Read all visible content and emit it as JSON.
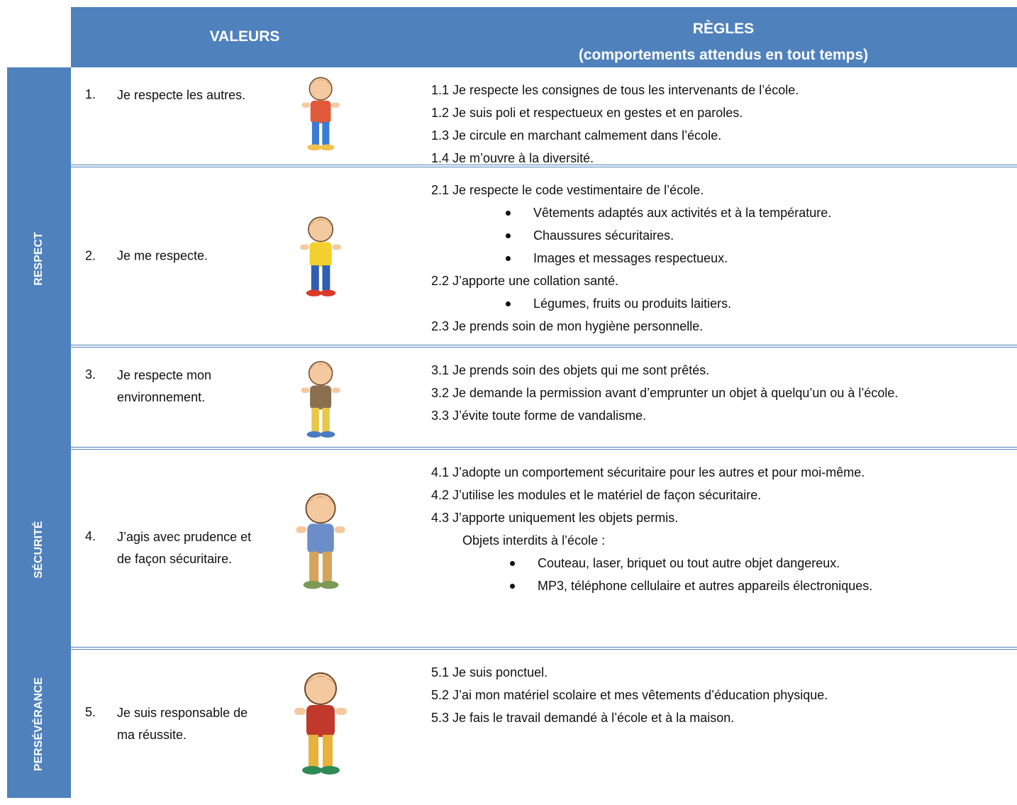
{
  "header": {
    "values_title": "VALEURS",
    "rules_title": [
      "RÈGLES",
      "(comportements attendus en tout temps)"
    ]
  },
  "groups": [
    {
      "label": "RESPECT"
    },
    {
      "label": "SÉCURITÉ"
    },
    {
      "label": "PERSÉVÉRANCE"
    }
  ],
  "rows": [
    {
      "number": "1.",
      "value": "Je respecte les autres.",
      "rules": [
        {
          "text": "1.1 Je respecte les consignes de tous les intervenants de l’école."
        },
        {
          "text": "1.2 Je suis poli et respectueux en gestes et en paroles."
        },
        {
          "text": "1.3 Je circule en marchant calmement dans l’école."
        },
        {
          "text": "1.4 Je m’ouvre à la diversité."
        }
      ]
    },
    {
      "number": "2.",
      "value": "Je me respecte.",
      "rules": [
        {
          "text": "2.1 Je respecte le code vestimentaire de l’école.",
          "bullets": [
            "Vêtements adaptés aux activités et à la température.",
            "Chaussures sécuritaires.",
            "Images et messages respectueux."
          ]
        },
        {
          "text": "2.2  J’apporte une collation santé.",
          "bullets": [
            "Légumes, fruits ou produits laitiers."
          ]
        },
        {
          "text": "2.3  Je prends soin de mon hygiène personnelle."
        }
      ]
    },
    {
      "number": "3.",
      "value": "Je respecte mon environnement.",
      "rules": [
        {
          "text": "3.1  Je prends soin des objets qui me sont prêtés."
        },
        {
          "text": "3.2  Je demande la permission avant d’emprunter un objet à quelqu’un ou à l’école."
        },
        {
          "text": "3.3  J’évite toute forme de vandalisme."
        }
      ]
    },
    {
      "number": "4.",
      "value": "J’agis avec prudence et de façon sécuritaire.",
      "rules": [
        {
          "text": "4.1  J’adopte un comportement sécuritaire pour les autres et pour moi-même."
        },
        {
          "text": "4.2  J’utilise les modules et le matériel de façon sécuritaire."
        },
        {
          "text": "4.3  J’apporte uniquement les objets permis.",
          "note": "Objets interdits à l’école :",
          "bullets": [
            "Couteau, laser, briquet ou tout autre objet dangereux.",
            "MP3, téléphone cellulaire et autres appareils électroniques."
          ]
        }
      ]
    },
    {
      "number": "5.",
      "value": "Je suis responsable de ma réussite.",
      "rules": [
        {
          "text": "5.1  Je suis ponctuel."
        },
        {
          "text": "5.2  J’ai mon matériel scolaire et mes vêtements d’éducation physique."
        },
        {
          "text": "5.3  Je fais le travail demandé à l’école et à la maison."
        }
      ]
    }
  ]
}
